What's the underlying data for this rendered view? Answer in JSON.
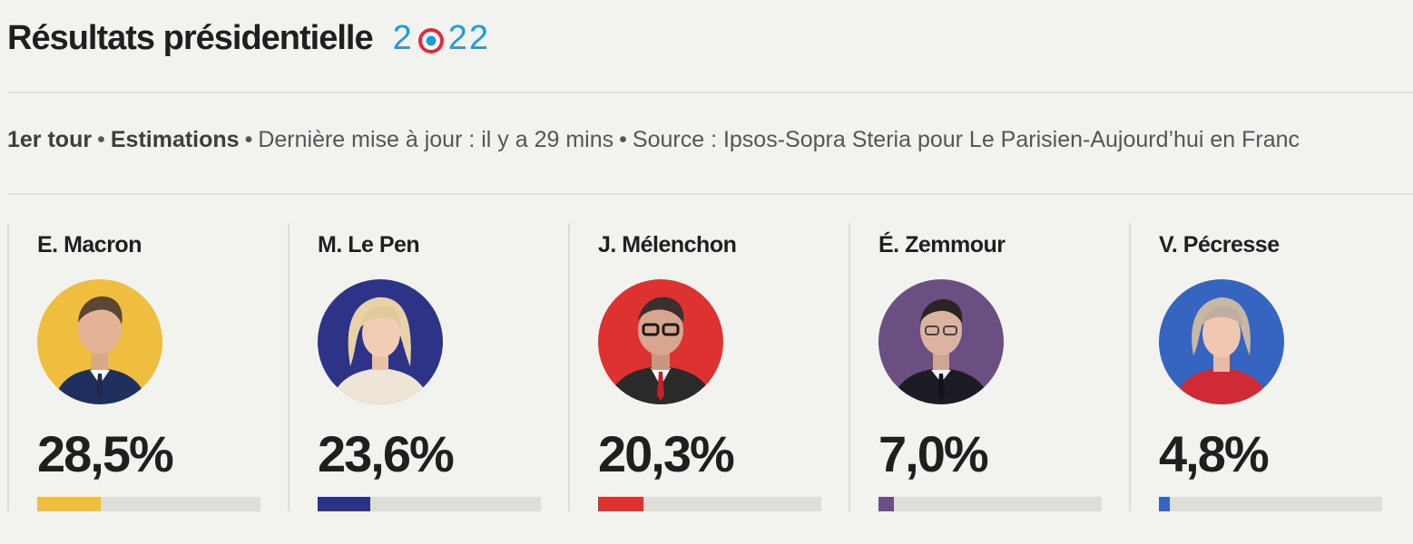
{
  "header": {
    "title": "Résultats présidentielle",
    "year_digits": [
      "2",
      "2",
      "2"
    ]
  },
  "meta": {
    "round": "1er tour",
    "type": "Estimations",
    "updated": "Dernière mise à jour : il y a 29 mins",
    "source": "Source : Ipsos-Sopra Steria pour Le Parisien-Aujourd’hui en Franc"
  },
  "candidates": [
    {
      "name": "E. Macron",
      "percent": "28,5%",
      "value": 28.5,
      "color": "#f0be3f",
      "bar_color": "#f0be3f",
      "icon": "candidate-photo"
    },
    {
      "name": "M. Le Pen",
      "percent": "23,6%",
      "value": 23.6,
      "color": "#2d3387",
      "bar_color": "#2d3387",
      "icon": "candidate-photo"
    },
    {
      "name": "J. Mélenchon",
      "percent": "20,3%",
      "value": 20.3,
      "color": "#de3230",
      "bar_color": "#de3230",
      "icon": "candidate-photo"
    },
    {
      "name": "É. Zemmour",
      "percent": "7,0%",
      "value": 7.0,
      "color": "#6b4e82",
      "bar_color": "#6b4e82",
      "icon": "candidate-photo"
    },
    {
      "name": "V. Pécresse",
      "percent": "4,8%",
      "value": 4.8,
      "color": "#3565c0",
      "bar_color": "#3565c0",
      "icon": "candidate-photo"
    }
  ],
  "chart_data": {
    "type": "bar",
    "categories": [
      "E. Macron",
      "M. Le Pen",
      "J. Mélenchon",
      "É. Zemmour",
      "V. Pécresse"
    ],
    "values": [
      28.5,
      23.6,
      20.3,
      7.0,
      4.8
    ],
    "ylim": [
      0,
      100
    ]
  }
}
